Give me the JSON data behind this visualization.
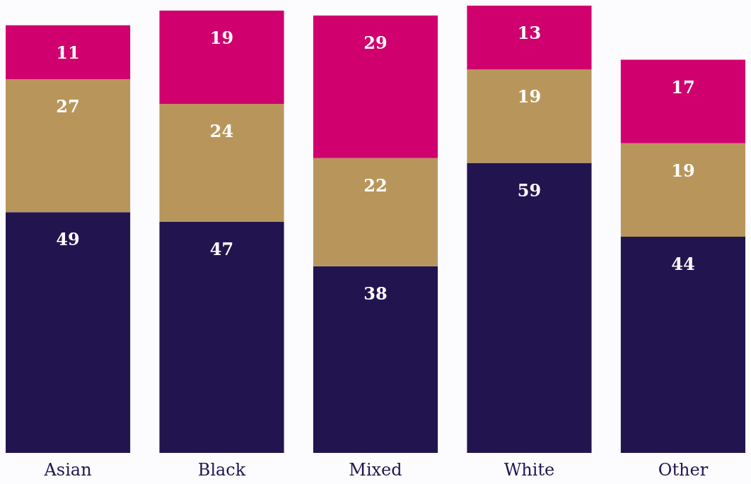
{
  "chart_data": {
    "type": "bar",
    "stacked": true,
    "data_labels": true,
    "categories": [
      "Asian",
      "Black",
      "Mixed",
      "White",
      "Other"
    ],
    "series": [
      {
        "color": "#22154f",
        "values": [
          49,
          47,
          38,
          59,
          44
        ]
      },
      {
        "color": "#b8965b",
        "values": [
          27,
          24,
          22,
          19,
          19
        ]
      },
      {
        "color": "#d0006f",
        "values": [
          11,
          19,
          29,
          13,
          17
        ]
      }
    ]
  }
}
